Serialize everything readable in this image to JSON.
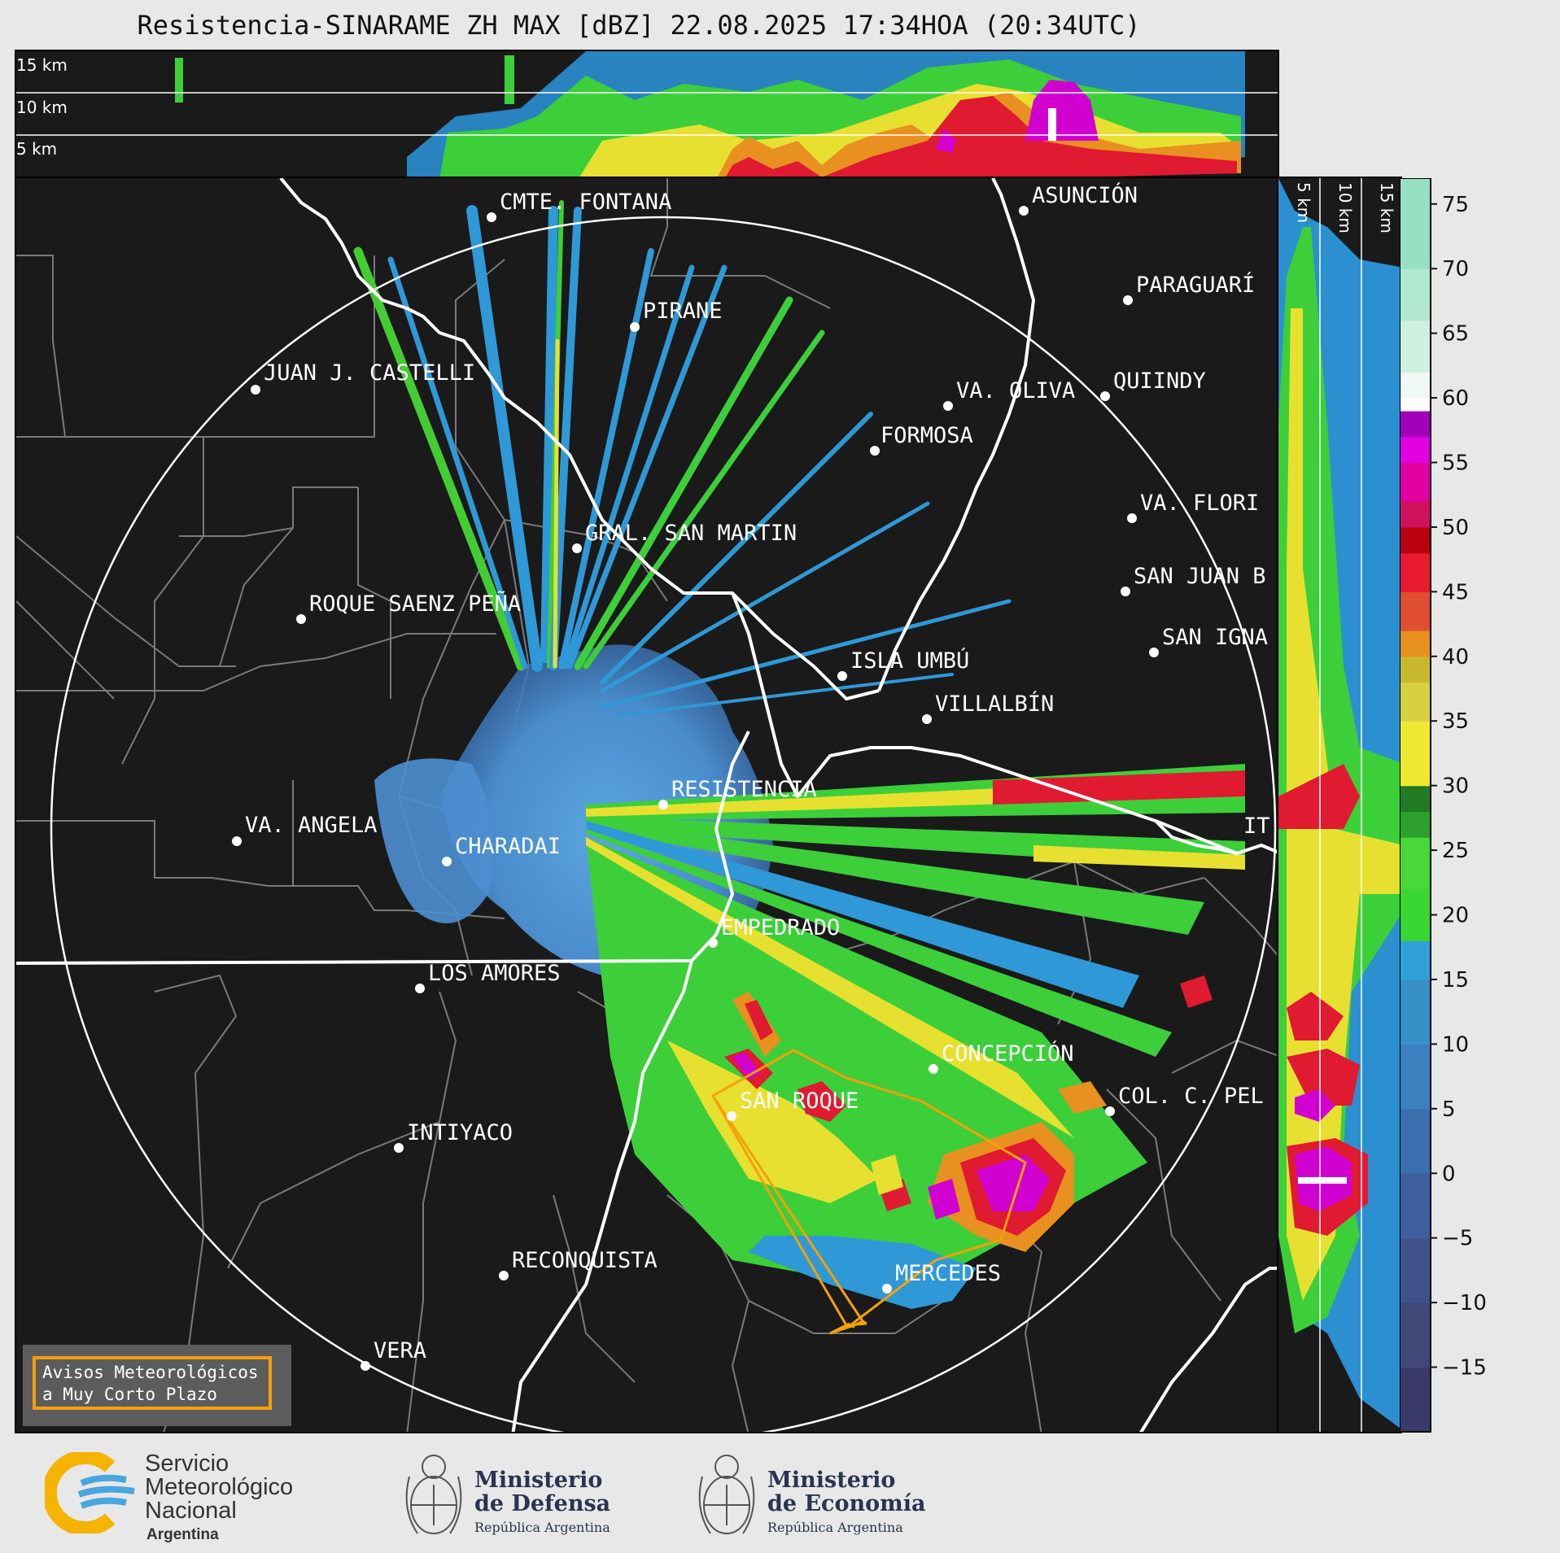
{
  "title": "Resistencia-SINARAME ZH MAX [dBZ] 22.08.2025 17:34HOA (20:34UTC)",
  "top_panel": {
    "height_labels": [
      "15 km",
      "10 km",
      "5 km"
    ]
  },
  "side_panel": {
    "height_labels": [
      "5 km",
      "10 km",
      "15 km"
    ]
  },
  "colorbar": {
    "ticks": [
      "75",
      "70",
      "65",
      "60",
      "55",
      "50",
      "45",
      "40",
      "35",
      "30",
      "25",
      "20",
      "15",
      "10",
      "5",
      "0",
      "−5",
      "−10",
      "−15"
    ],
    "range": [
      -20,
      77
    ]
  },
  "map": {
    "cities": [
      {
        "name": "CMTE. FONTANA"
      },
      {
        "name": "ASUNCIÓN"
      },
      {
        "name": "PARAGUARÍ"
      },
      {
        "name": "PIRANE"
      },
      {
        "name": "JUAN J. CASTELLI"
      },
      {
        "name": "VA. OLIVA"
      },
      {
        "name": "QUIINDY"
      },
      {
        "name": "FORMOSA"
      },
      {
        "name": "VA. FLORI"
      },
      {
        "name": "GRAL. SAN MARTIN"
      },
      {
        "name": "SAN JUAN B"
      },
      {
        "name": "ROQUE SAENZ PEÑA"
      },
      {
        "name": "SAN IGNA"
      },
      {
        "name": "ISLA UMBÚ"
      },
      {
        "name": "VILLALBÍN"
      },
      {
        "name": "RESISTENCIA"
      },
      {
        "name": "VA. ANGELA"
      },
      {
        "name": "CHARADAI"
      },
      {
        "name": "IT"
      },
      {
        "name": "EMPEDRADO"
      },
      {
        "name": "LOS AMORES"
      },
      {
        "name": "CONCEPCIÓN"
      },
      {
        "name": "SAN ROQUE"
      },
      {
        "name": "COL. C. PEL"
      },
      {
        "name": "INTIYACO"
      },
      {
        "name": "RECONQUISTA"
      },
      {
        "name": "MERCEDES"
      },
      {
        "name": "VERA"
      }
    ]
  },
  "legend": {
    "line1": "Avisos Meteorológicos",
    "line2": "a Muy Corto Plazo",
    "color": "#f5a00a"
  },
  "footer": {
    "smn": {
      "line1": "Servicio",
      "line2": "Meteorológico",
      "line3": "Nacional",
      "sub": "Argentina"
    },
    "defensa": {
      "line1": "Ministerio",
      "line2": "de Defensa",
      "sub": "República Argentina"
    },
    "economia": {
      "line1": "Ministerio",
      "line2": "de Economía",
      "sub": "República Argentina"
    }
  }
}
